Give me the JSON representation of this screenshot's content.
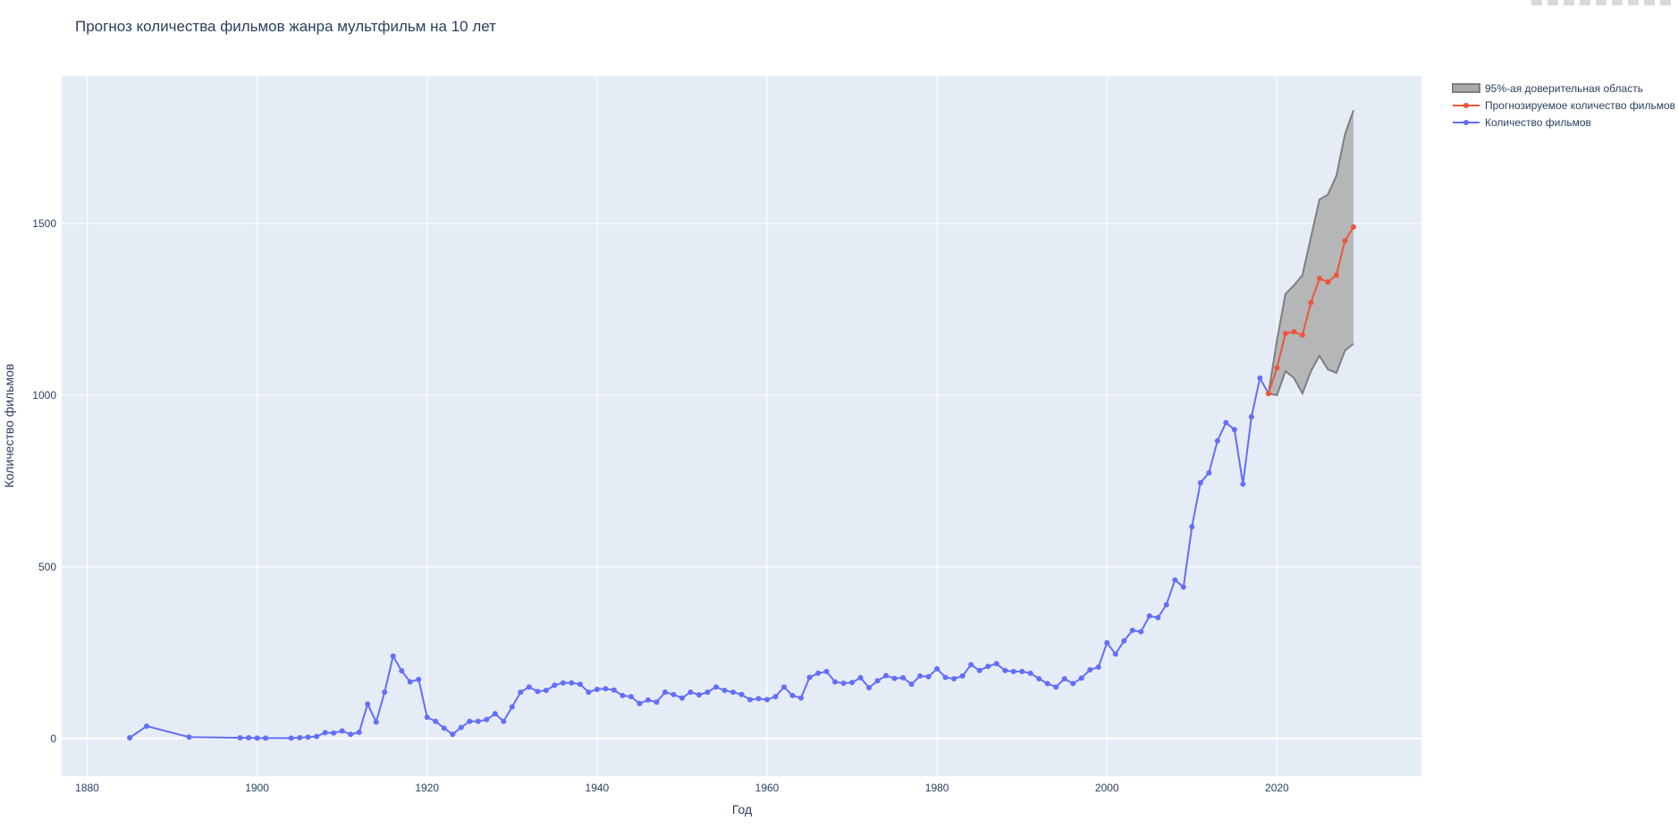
{
  "chart_data": {
    "type": "line",
    "title": "Прогноз количества фильмов жанра мультфильм на 10 лет",
    "xlabel": "Год",
    "ylabel": "Количество фильмов",
    "xlim": [
      1877,
      2037
    ],
    "ylim": [
      -110,
      1930
    ],
    "x_ticks": [
      1880,
      1900,
      1920,
      1940,
      1960,
      1980,
      2000,
      2020
    ],
    "y_ticks": [
      0,
      500,
      1000,
      1500
    ],
    "grid": true,
    "legend_position": "top-right-outside",
    "series": [
      {
        "name": "Количество фильмов",
        "color": "#636efa",
        "x": [
          1885,
          1887,
          1892,
          1898,
          1899,
          1900,
          1901,
          1904,
          1905,
          1906,
          1907,
          1908,
          1909,
          1910,
          1911,
          1912,
          1913,
          1914,
          1915,
          1916,
          1917,
          1918,
          1919,
          1920,
          1921,
          1922,
          1923,
          1924,
          1925,
          1926,
          1927,
          1928,
          1929,
          1930,
          1931,
          1932,
          1933,
          1934,
          1935,
          1936,
          1937,
          1938,
          1939,
          1940,
          1941,
          1942,
          1943,
          1944,
          1945,
          1946,
          1947,
          1948,
          1949,
          1950,
          1951,
          1952,
          1953,
          1954,
          1955,
          1956,
          1957,
          1958,
          1959,
          1960,
          1961,
          1962,
          1963,
          1964,
          1965,
          1966,
          1967,
          1968,
          1969,
          1970,
          1971,
          1972,
          1973,
          1974,
          1975,
          1976,
          1977,
          1978,
          1979,
          1980,
          1981,
          1982,
          1983,
          1984,
          1985,
          1986,
          1987,
          1988,
          1989,
          1990,
          1991,
          1992,
          1993,
          1994,
          1995,
          1996,
          1997,
          1998,
          1999,
          2000,
          2001,
          2002,
          2003,
          2004,
          2005,
          2006,
          2007,
          2008,
          2009,
          2010,
          2011,
          2012,
          2013,
          2014,
          2015,
          2016,
          2017,
          2018,
          2019
        ],
        "y": [
          2,
          36,
          4,
          2,
          2,
          1,
          1,
          1,
          2,
          4,
          6,
          17,
          16,
          22,
          12,
          18,
          100,
          48,
          135,
          240,
          197,
          165,
          172,
          62,
          50,
          30,
          12,
          32,
          50,
          50,
          55,
          72,
          50,
          92,
          135,
          150,
          137,
          140,
          155,
          162,
          162,
          158,
          135,
          143,
          145,
          141,
          125,
          122,
          102,
          112,
          106,
          135,
          128,
          118,
          135,
          127,
          135,
          150,
          140,
          135,
          128,
          113,
          116,
          113,
          122,
          150,
          125,
          118,
          178,
          190,
          195,
          165,
          161,
          163,
          177,
          148,
          168,
          183,
          175,
          177,
          158,
          182,
          180,
          203,
          178,
          174,
          182,
          215,
          198,
          210,
          218,
          198,
          195,
          195,
          190,
          174,
          160,
          150,
          174,
          160,
          176,
          200,
          208,
          279,
          246,
          284,
          315,
          311,
          357,
          352,
          390,
          462,
          441,
          617,
          745,
          774,
          867,
          920,
          900,
          741,
          937,
          1050,
          1005
        ]
      },
      {
        "name": "Прогнозируемое количество фильмов",
        "color": "#ef553b",
        "x": [
          2019,
          2020,
          2021,
          2022,
          2023,
          2024,
          2025,
          2026,
          2027,
          2028,
          2029
        ],
        "y": [
          1005,
          1080,
          1180,
          1185,
          1175,
          1270,
          1340,
          1330,
          1350,
          1450,
          1490
        ]
      }
    ],
    "confidence_band": {
      "name": "95%-ая доверительная область",
      "color": "#a9a9a9",
      "x": [
        2019,
        2020,
        2021,
        2022,
        2023,
        2024,
        2025,
        2026,
        2027,
        2028,
        2029
      ],
      "lower": [
        1005,
        1000,
        1070,
        1050,
        1005,
        1070,
        1115,
        1075,
        1065,
        1130,
        1150
      ],
      "upper": [
        1005,
        1160,
        1295,
        1320,
        1350,
        1460,
        1570,
        1585,
        1640,
        1760,
        1830
      ]
    }
  }
}
